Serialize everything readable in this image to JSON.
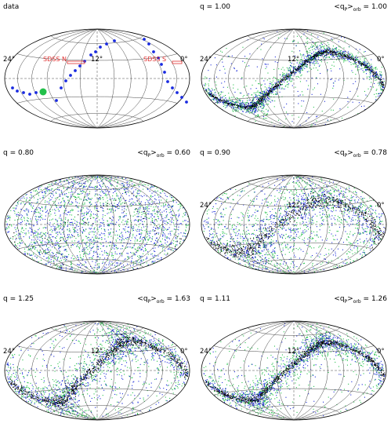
{
  "figure": {
    "colors": {
      "stars_black": "#000000",
      "stars_blue": "#1b2bd8",
      "stars_green": "#22c04a",
      "data_blue": "#1a2be0",
      "sdss_red": "#e03030",
      "grid": "#444444"
    },
    "panels": [
      {
        "id": "data",
        "left_label": "data",
        "right_label": "",
        "ticks": [
          "24°",
          "12°",
          "0°"
        ],
        "show_data": true
      },
      {
        "id": "q100",
        "left_label": "q = 1.00",
        "right_label": "<q_P>_orb = 1.00",
        "ticks": [
          "24°",
          "12°",
          "0°"
        ],
        "model": "flat"
      },
      {
        "id": "q080",
        "left_label": "q = 0.80",
        "right_label": "<q_P>_orb = 0.60",
        "ticks": [],
        "model": "oblate"
      },
      {
        "id": "q090",
        "left_label": "q = 0.90",
        "right_label": "<q_P>_orb = 0.78",
        "ticks": [
          "24°",
          "12°",
          "0°"
        ],
        "model": "mid"
      },
      {
        "id": "q125",
        "left_label": "q = 1.25",
        "right_label": "<q_P>_orb = 1.63",
        "ticks": [
          "24°",
          "12°",
          "0°"
        ],
        "model": "prolate"
      },
      {
        "id": "q111",
        "left_label": "q = 1.11",
        "right_label": "<q_P>_orb = 1.26",
        "ticks": [
          "24°",
          "12°",
          "0°"
        ],
        "model": "prolate2"
      }
    ],
    "sdss_labels": {
      "north": "SDSS N",
      "south": "SDSS S"
    }
  }
}
